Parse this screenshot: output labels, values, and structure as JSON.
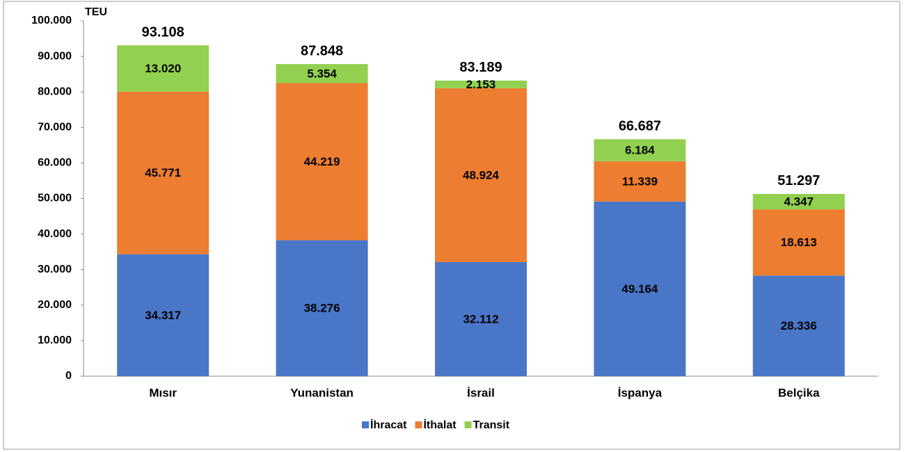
{
  "chart_data": {
    "type": "stacked_bar",
    "y_label": "TEU",
    "categories": [
      "Mısır",
      "Yunanistan",
      "İsrail",
      "İspanya",
      "Belçika"
    ],
    "series": [
      {
        "name": "İhracat",
        "color": "#4a76c8",
        "values": [
          34317,
          38276,
          32112,
          49164,
          28336
        ],
        "value_labels": [
          "34.317",
          "38.276",
          "32.112",
          "49.164",
          "28.336"
        ]
      },
      {
        "name": "İthalat",
        "color": "#ed7d31",
        "values": [
          45771,
          44219,
          48924,
          11339,
          18613
        ],
        "value_labels": [
          "45.771",
          "44.219",
          "48.924",
          "11.339",
          "18.613"
        ]
      },
      {
        "name": "Transit",
        "color": "#92d050",
        "values": [
          13020,
          5354,
          2153,
          6184,
          4347
        ],
        "value_labels": [
          "13.020",
          "5.354",
          "2.153",
          "6.184",
          "4.347"
        ]
      }
    ],
    "totals": {
      "values": [
        93108,
        87848,
        83189,
        66687,
        51297
      ],
      "value_labels": [
        "93.108",
        "87.848",
        "83.189",
        "66.687",
        "51.297"
      ]
    },
    "ylim": [
      0,
      100000
    ],
    "yticks": [
      0,
      {
        "value": 10000,
        "label": "10.000"
      },
      {
        "value": 20000,
        "label": "20.000"
      },
      {
        "value": 30000,
        "label": "30.000"
      },
      {
        "value": 40000,
        "label": "40.000"
      },
      {
        "value": 50000,
        "label": "50.000"
      },
      {
        "value": 60000,
        "label": "60.000"
      },
      {
        "value": 70000,
        "label": "70.000"
      },
      {
        "value": 80000,
        "label": "80.000"
      },
      {
        "value": 90000,
        "label": "90.000"
      },
      {
        "value": 100000,
        "label": "100.000"
      }
    ],
    "grid": false,
    "legend": "bottom"
  }
}
